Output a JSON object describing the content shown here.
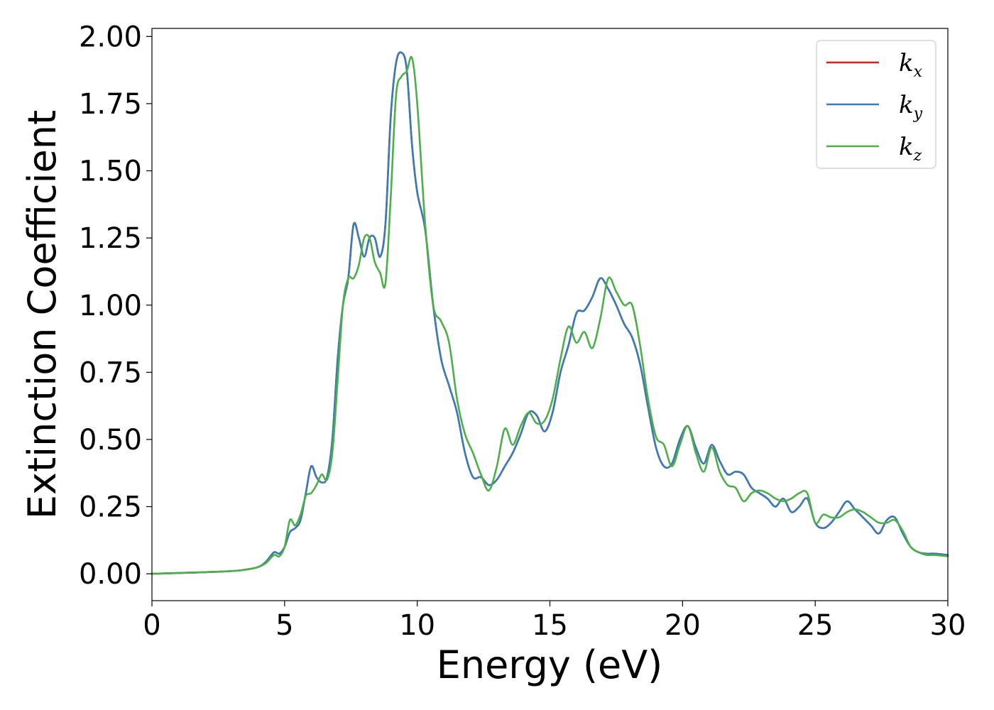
{
  "chart_data": {
    "type": "line",
    "xlabel": "Energy (eV)",
    "ylabel": "Extinction Coefficient",
    "xlim": [
      0,
      30
    ],
    "ylim": [
      -0.1,
      2.03
    ],
    "xticks": [
      "0",
      "5",
      "10",
      "15",
      "20",
      "25",
      "30"
    ],
    "yticks": [
      "0.00",
      "0.25",
      "0.50",
      "0.75",
      "1.00",
      "1.25",
      "1.50",
      "1.75",
      "2.00"
    ],
    "grid": false,
    "legend_position": "top-right",
    "series": [
      {
        "name": "k_x",
        "label_main": "k",
        "label_sub": "x",
        "color": "#e41a1c",
        "x": [
          0,
          1,
          2,
          3,
          3.5,
          4.0,
          4.3,
          4.6,
          4.8,
          5.0,
          5.2,
          5.4,
          5.6,
          5.8,
          6.0,
          6.2,
          6.4,
          6.6,
          6.8,
          7.0,
          7.2,
          7.4,
          7.6,
          7.8,
          8.0,
          8.2,
          8.4,
          8.6,
          8.8,
          9.0,
          9.2,
          9.4,
          9.6,
          9.8,
          10.0,
          10.3,
          10.6,
          10.9,
          11.2,
          11.5,
          11.8,
          12.1,
          12.4,
          12.7,
          13.0,
          13.3,
          13.6,
          13.9,
          14.2,
          14.5,
          14.8,
          15.1,
          15.4,
          15.7,
          16.0,
          16.3,
          16.6,
          16.9,
          17.2,
          17.5,
          17.8,
          18.1,
          18.4,
          18.7,
          19.0,
          19.3,
          19.6,
          19.9,
          20.2,
          20.5,
          20.8,
          21.1,
          21.4,
          21.7,
          22.0,
          22.3,
          22.6,
          22.9,
          23.2,
          23.5,
          23.8,
          24.1,
          24.4,
          24.7,
          25.0,
          25.3,
          25.6,
          25.9,
          26.2,
          26.5,
          26.8,
          27.1,
          27.4,
          27.7,
          28.0,
          28.3,
          28.6,
          28.9,
          29.2,
          29.5,
          30.0
        ],
        "y": [
          0.0,
          0.003,
          0.006,
          0.01,
          0.015,
          0.025,
          0.045,
          0.08,
          0.075,
          0.1,
          0.155,
          0.17,
          0.2,
          0.3,
          0.4,
          0.36,
          0.34,
          0.36,
          0.5,
          0.8,
          1.0,
          1.1,
          1.3,
          1.25,
          1.18,
          1.25,
          1.25,
          1.18,
          1.3,
          1.7,
          1.9,
          1.94,
          1.88,
          1.6,
          1.42,
          1.28,
          1.0,
          0.8,
          0.7,
          0.6,
          0.45,
          0.36,
          0.36,
          0.33,
          0.35,
          0.4,
          0.45,
          0.52,
          0.6,
          0.59,
          0.53,
          0.6,
          0.75,
          0.85,
          0.97,
          0.98,
          1.03,
          1.1,
          1.06,
          1.0,
          0.93,
          0.88,
          0.78,
          0.62,
          0.47,
          0.4,
          0.41,
          0.5,
          0.55,
          0.47,
          0.41,
          0.48,
          0.42,
          0.37,
          0.38,
          0.37,
          0.32,
          0.3,
          0.28,
          0.25,
          0.28,
          0.23,
          0.25,
          0.28,
          0.19,
          0.17,
          0.19,
          0.23,
          0.27,
          0.24,
          0.21,
          0.18,
          0.15,
          0.2,
          0.21,
          0.15,
          0.1,
          0.08,
          0.075,
          0.075,
          0.07
        ]
      },
      {
        "name": "k_y",
        "label_main": "k",
        "label_sub": "y",
        "color": "#377eb8",
        "x": [
          0,
          1,
          2,
          3,
          3.5,
          4.0,
          4.3,
          4.6,
          4.8,
          5.0,
          5.2,
          5.4,
          5.6,
          5.8,
          6.0,
          6.2,
          6.4,
          6.6,
          6.8,
          7.0,
          7.2,
          7.4,
          7.6,
          7.8,
          8.0,
          8.2,
          8.4,
          8.6,
          8.8,
          9.0,
          9.2,
          9.4,
          9.6,
          9.8,
          10.0,
          10.3,
          10.6,
          10.9,
          11.2,
          11.5,
          11.8,
          12.1,
          12.4,
          12.7,
          13.0,
          13.3,
          13.6,
          13.9,
          14.2,
          14.5,
          14.8,
          15.1,
          15.4,
          15.7,
          16.0,
          16.3,
          16.6,
          16.9,
          17.2,
          17.5,
          17.8,
          18.1,
          18.4,
          18.7,
          19.0,
          19.3,
          19.6,
          19.9,
          20.2,
          20.5,
          20.8,
          21.1,
          21.4,
          21.7,
          22.0,
          22.3,
          22.6,
          22.9,
          23.2,
          23.5,
          23.8,
          24.1,
          24.4,
          24.7,
          25.0,
          25.3,
          25.6,
          25.9,
          26.2,
          26.5,
          26.8,
          27.1,
          27.4,
          27.7,
          28.0,
          28.3,
          28.6,
          28.9,
          29.2,
          29.5,
          30.0
        ],
        "y": [
          0.0,
          0.003,
          0.006,
          0.01,
          0.015,
          0.025,
          0.045,
          0.08,
          0.075,
          0.1,
          0.155,
          0.17,
          0.2,
          0.3,
          0.4,
          0.36,
          0.34,
          0.36,
          0.5,
          0.8,
          1.0,
          1.1,
          1.3,
          1.25,
          1.18,
          1.25,
          1.25,
          1.18,
          1.3,
          1.7,
          1.9,
          1.94,
          1.88,
          1.6,
          1.42,
          1.28,
          1.0,
          0.8,
          0.7,
          0.6,
          0.45,
          0.36,
          0.36,
          0.33,
          0.35,
          0.4,
          0.45,
          0.52,
          0.6,
          0.59,
          0.53,
          0.6,
          0.75,
          0.85,
          0.97,
          0.98,
          1.03,
          1.1,
          1.06,
          1.0,
          0.93,
          0.88,
          0.78,
          0.62,
          0.47,
          0.4,
          0.41,
          0.5,
          0.55,
          0.47,
          0.41,
          0.48,
          0.42,
          0.37,
          0.38,
          0.37,
          0.32,
          0.3,
          0.28,
          0.25,
          0.28,
          0.23,
          0.25,
          0.28,
          0.19,
          0.17,
          0.19,
          0.23,
          0.27,
          0.24,
          0.21,
          0.18,
          0.15,
          0.2,
          0.21,
          0.15,
          0.1,
          0.08,
          0.075,
          0.075,
          0.07
        ]
      },
      {
        "name": "k_z",
        "label_main": "k",
        "label_sub": "z",
        "color": "#4daf4a",
        "x": [
          0,
          1,
          2,
          3,
          3.5,
          4.0,
          4.3,
          4.6,
          4.8,
          5.0,
          5.2,
          5.4,
          5.6,
          5.8,
          6.0,
          6.2,
          6.4,
          6.6,
          6.8,
          7.0,
          7.2,
          7.4,
          7.6,
          7.8,
          8.0,
          8.2,
          8.4,
          8.6,
          8.8,
          9.0,
          9.2,
          9.4,
          9.6,
          9.8,
          10.0,
          10.3,
          10.6,
          10.9,
          11.2,
          11.5,
          11.8,
          12.1,
          12.4,
          12.7,
          13.0,
          13.3,
          13.6,
          13.9,
          14.2,
          14.5,
          14.8,
          15.1,
          15.4,
          15.7,
          16.0,
          16.3,
          16.6,
          16.9,
          17.2,
          17.5,
          17.8,
          18.1,
          18.4,
          18.7,
          19.0,
          19.3,
          19.6,
          19.9,
          20.2,
          20.5,
          20.8,
          21.1,
          21.4,
          21.7,
          22.0,
          22.3,
          22.6,
          22.9,
          23.2,
          23.5,
          23.8,
          24.1,
          24.4,
          24.7,
          25.0,
          25.3,
          25.6,
          25.9,
          26.2,
          26.5,
          26.8,
          27.1,
          27.4,
          27.7,
          28.0,
          28.3,
          28.6,
          28.9,
          29.2,
          29.5,
          30.0
        ],
        "y": [
          0.0,
          0.003,
          0.006,
          0.01,
          0.015,
          0.025,
          0.04,
          0.07,
          0.065,
          0.1,
          0.2,
          0.18,
          0.22,
          0.29,
          0.3,
          0.33,
          0.37,
          0.35,
          0.45,
          0.72,
          1.0,
          1.1,
          1.1,
          1.15,
          1.25,
          1.25,
          1.16,
          1.12,
          1.08,
          1.4,
          1.78,
          1.85,
          1.87,
          1.92,
          1.75,
          1.3,
          1.0,
          0.94,
          0.86,
          0.65,
          0.52,
          0.45,
          0.37,
          0.31,
          0.4,
          0.54,
          0.48,
          0.55,
          0.6,
          0.56,
          0.57,
          0.65,
          0.8,
          0.92,
          0.86,
          0.9,
          0.84,
          0.95,
          1.1,
          1.05,
          1.0,
          1.0,
          0.85,
          0.65,
          0.51,
          0.48,
          0.4,
          0.48,
          0.55,
          0.45,
          0.38,
          0.47,
          0.38,
          0.33,
          0.32,
          0.27,
          0.3,
          0.31,
          0.3,
          0.28,
          0.27,
          0.28,
          0.3,
          0.3,
          0.19,
          0.22,
          0.21,
          0.21,
          0.23,
          0.24,
          0.23,
          0.21,
          0.19,
          0.19,
          0.2,
          0.16,
          0.1,
          0.08,
          0.07,
          0.07,
          0.065
        ]
      }
    ]
  }
}
